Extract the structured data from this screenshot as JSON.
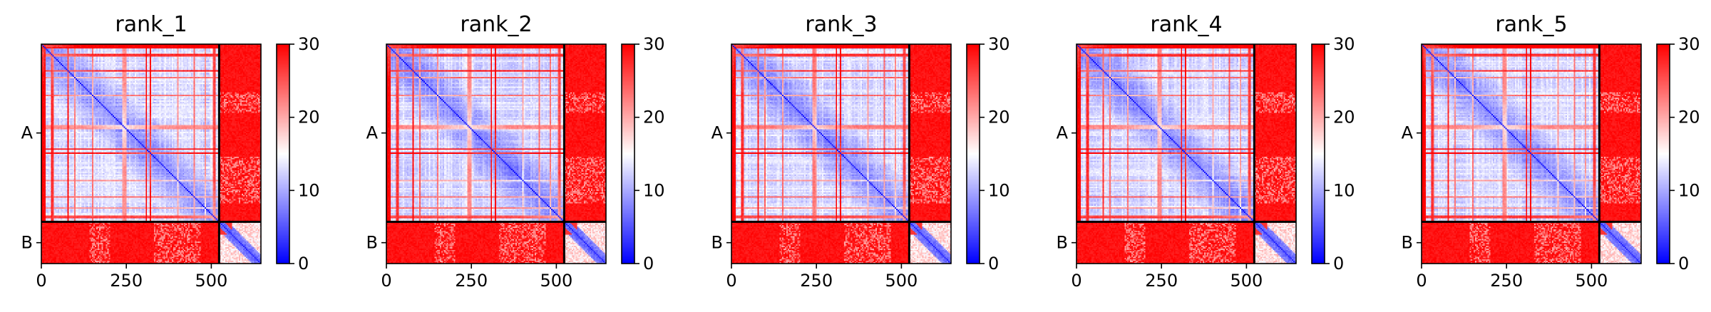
{
  "chart_data": {
    "type": "heatmap",
    "description_colormap": "bwr",
    "colors": {
      "low": "#0000ff",
      "mid": "#ffffff",
      "high": "#ff0000",
      "divider": "#000000"
    },
    "chain_boundary": 523,
    "total_length": 646,
    "chains": [
      {
        "label": "A",
        "start": 0,
        "end": 523
      },
      {
        "label": "B",
        "start": 523,
        "end": 646
      }
    ],
    "x_ticks": [
      0,
      250,
      500
    ],
    "colorbar": {
      "min": 0,
      "max": 30,
      "ticks": [
        0,
        10,
        20,
        30
      ]
    },
    "panels": [
      {
        "title": "rank_1"
      },
      {
        "title": "rank_2"
      },
      {
        "title": "rank_3"
      },
      {
        "title": "rank_4"
      },
      {
        "title": "rank_5"
      }
    ]
  }
}
